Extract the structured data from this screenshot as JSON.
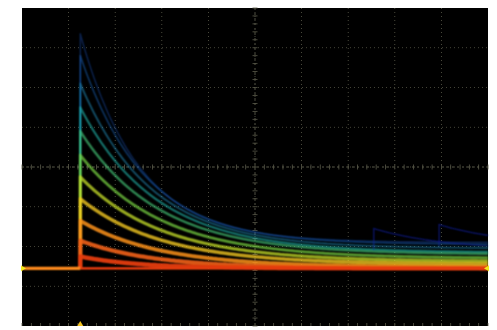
{
  "colors": {
    "background": "#000000",
    "grid": "#5a5a4a",
    "trace_low": "#0a1a8c",
    "trace_mid_blue": "#1f6fd1",
    "trace_cyan": "#1fc7b8",
    "trace_green": "#6ee04a",
    "trace_yellow": "#f2e81e",
    "trace_orange": "#ff8a1a",
    "trace_red": "#e53b10",
    "level_marker": "#f2e81e",
    "trigger_marker": "#f2c21e"
  },
  "chart_data": {
    "type": "line",
    "title": "",
    "xlabel": "",
    "ylabel": "",
    "grid": true,
    "grid_divisions": {
      "x": 10,
      "y": 8
    },
    "xlim": [
      0,
      10
    ],
    "ylim": [
      0,
      8
    ],
    "rise_x": 1.25,
    "baseline_y": 1.45,
    "series": [
      {
        "peak": 7.35,
        "tail": 2.1,
        "tau": 2.0,
        "intensity": 0.1
      },
      {
        "peak": 6.8,
        "tail": 2.05,
        "tau": 2.2,
        "intensity": 0.16
      },
      {
        "peak": 6.1,
        "tail": 1.95,
        "tau": 2.4,
        "intensity": 0.24
      },
      {
        "peak": 5.5,
        "tail": 1.85,
        "tau": 2.6,
        "intensity": 0.33
      },
      {
        "peak": 4.9,
        "tail": 1.8,
        "tau": 2.7,
        "intensity": 0.42
      },
      {
        "peak": 4.3,
        "tail": 1.7,
        "tau": 2.8,
        "intensity": 0.52
      },
      {
        "peak": 3.75,
        "tail": 1.62,
        "tau": 2.8,
        "intensity": 0.62
      },
      {
        "peak": 3.2,
        "tail": 1.55,
        "tau": 2.8,
        "intensity": 0.72
      },
      {
        "peak": 2.65,
        "tail": 1.48,
        "tau": 2.7,
        "intensity": 0.82
      },
      {
        "peak": 2.15,
        "tail": 1.45,
        "tau": 2.5,
        "intensity": 0.92
      },
      {
        "peak": 1.75,
        "tail": 1.45,
        "tau": 2.0,
        "intensity": 1.0
      }
    ],
    "faint_branches": [
      {
        "start_x": 7.55,
        "peak": 2.45,
        "tail": 1.9,
        "tau": 2.5
      },
      {
        "start_x": 8.95,
        "peak": 2.55,
        "tail": 2.0,
        "tau": 2.5
      }
    ]
  }
}
